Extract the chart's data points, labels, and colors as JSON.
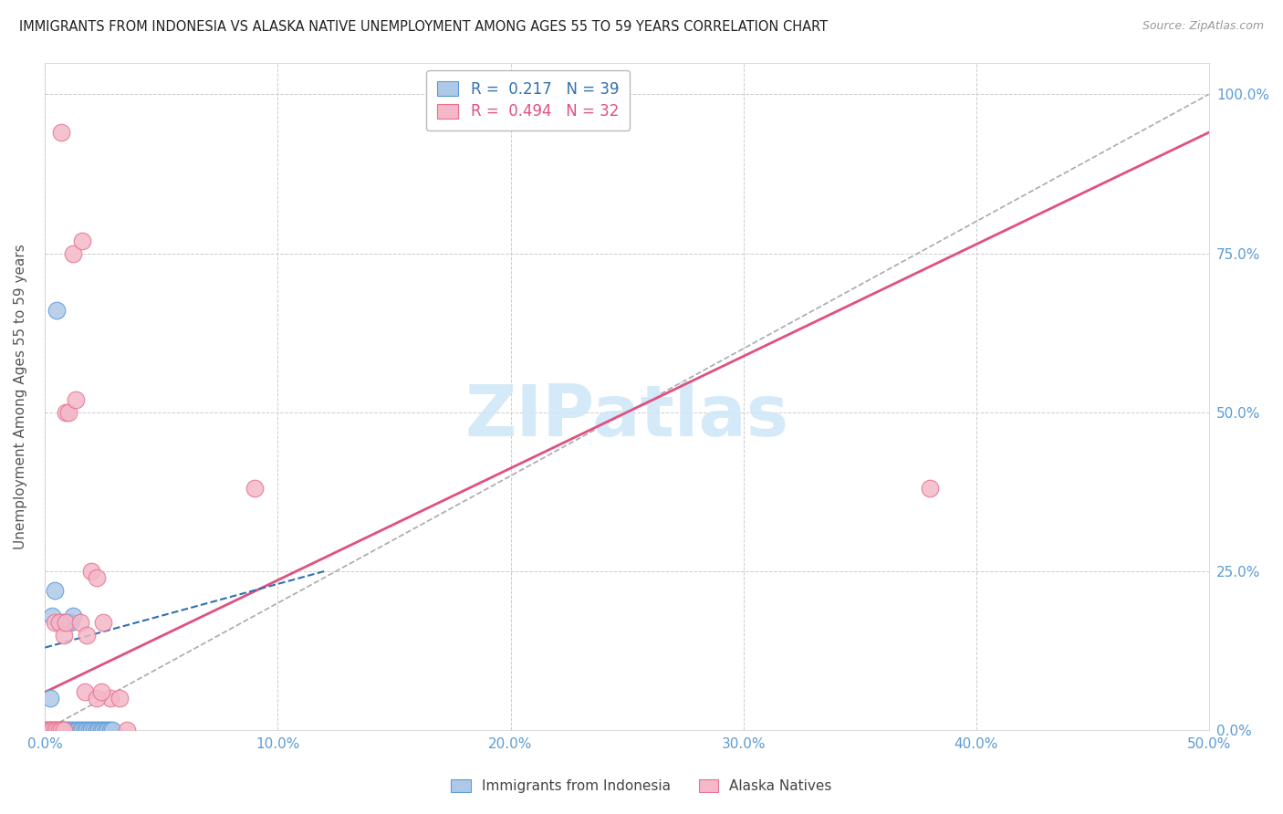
{
  "title": "IMMIGRANTS FROM INDONESIA VS ALASKA NATIVE UNEMPLOYMENT AMONG AGES 55 TO 59 YEARS CORRELATION CHART",
  "source": "Source: ZipAtlas.com",
  "ylabel_label": "Unemployment Among Ages 55 to 59 years",
  "legend1_label": "Immigrants from Indonesia",
  "legend2_label": "Alaska Natives",
  "R1": 0.217,
  "N1": 39,
  "R2": 0.494,
  "N2": 32,
  "blue_fill": "#aec8e8",
  "blue_edge": "#5b9bd5",
  "pink_fill": "#f4b8c8",
  "pink_edge": "#e87090",
  "blue_line_color": "#3070b0",
  "pink_line_color": "#e05080",
  "watermark_color": "#d0e8f8",
  "grid_color": "#cccccc",
  "tick_color": "#5b9bd5",
  "background_color": "#ffffff",
  "xlim": [
    0.0,
    0.5
  ],
  "ylim": [
    0.0,
    1.05
  ],
  "blue_points": [
    [
      0.0,
      0.0
    ],
    [
      0.001,
      0.0
    ],
    [
      0.002,
      0.0
    ],
    [
      0.003,
      0.0
    ],
    [
      0.004,
      0.0
    ],
    [
      0.005,
      0.0
    ],
    [
      0.006,
      0.0
    ],
    [
      0.007,
      0.0
    ],
    [
      0.008,
      0.0
    ],
    [
      0.009,
      0.0
    ],
    [
      0.01,
      0.0
    ],
    [
      0.011,
      0.0
    ],
    [
      0.012,
      0.0
    ],
    [
      0.013,
      0.0
    ],
    [
      0.014,
      0.0
    ],
    [
      0.015,
      0.0
    ],
    [
      0.016,
      0.0
    ],
    [
      0.017,
      0.0
    ],
    [
      0.018,
      0.0
    ],
    [
      0.019,
      0.0
    ],
    [
      0.02,
      0.0
    ],
    [
      0.021,
      0.0
    ],
    [
      0.022,
      0.0
    ],
    [
      0.023,
      0.0
    ],
    [
      0.003,
      0.18
    ],
    [
      0.004,
      0.22
    ],
    [
      0.024,
      0.0
    ],
    [
      0.025,
      0.0
    ],
    [
      0.007,
      0.17
    ],
    [
      0.008,
      0.17
    ],
    [
      0.01,
      0.17
    ],
    [
      0.011,
      0.17
    ],
    [
      0.012,
      0.18
    ],
    [
      0.005,
      0.66
    ],
    [
      0.002,
      0.05
    ],
    [
      0.026,
      0.0
    ],
    [
      0.027,
      0.0
    ],
    [
      0.028,
      0.0
    ],
    [
      0.029,
      0.0
    ]
  ],
  "pink_points": [
    [
      0.0,
      0.0
    ],
    [
      0.001,
      0.0
    ],
    [
      0.002,
      0.0
    ],
    [
      0.003,
      0.0
    ],
    [
      0.004,
      0.0
    ],
    [
      0.005,
      0.0
    ],
    [
      0.006,
      0.0
    ],
    [
      0.007,
      0.0
    ],
    [
      0.008,
      0.0
    ],
    [
      0.004,
      0.17
    ],
    [
      0.006,
      0.17
    ],
    [
      0.008,
      0.15
    ],
    [
      0.009,
      0.17
    ],
    [
      0.009,
      0.5
    ],
    [
      0.01,
      0.5
    ],
    [
      0.012,
      0.75
    ],
    [
      0.016,
      0.77
    ],
    [
      0.013,
      0.52
    ],
    [
      0.02,
      0.25
    ],
    [
      0.022,
      0.24
    ],
    [
      0.025,
      0.17
    ],
    [
      0.015,
      0.17
    ],
    [
      0.018,
      0.15
    ],
    [
      0.017,
      0.06
    ],
    [
      0.028,
      0.05
    ],
    [
      0.032,
      0.05
    ],
    [
      0.022,
      0.05
    ],
    [
      0.024,
      0.06
    ],
    [
      0.007,
      0.94
    ],
    [
      0.38,
      0.38
    ],
    [
      0.09,
      0.38
    ],
    [
      0.035,
      0.0
    ]
  ],
  "blue_line": [
    [
      0.0,
      0.13
    ],
    [
      0.12,
      0.25
    ]
  ],
  "pink_line": [
    [
      0.0,
      0.06
    ],
    [
      0.5,
      0.94
    ]
  ],
  "dashed_line": [
    [
      0.0,
      0.0
    ],
    [
      0.5,
      1.0
    ]
  ]
}
